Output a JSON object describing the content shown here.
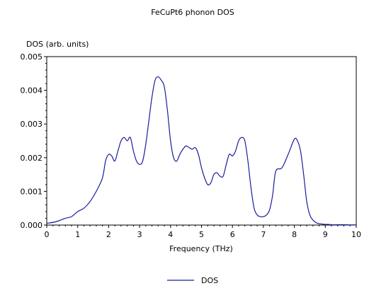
{
  "chart_data": {
    "type": "line",
    "title": "FeCuPt6 phonon DOS",
    "xlabel": "Frequency (THz)",
    "ylabel": "DOS (arb. units)",
    "xlim": [
      0,
      10
    ],
    "ylim": [
      0,
      0.005
    ],
    "x_ticks": [
      "0",
      "1",
      "2",
      "3",
      "4",
      "5",
      "6",
      "7",
      "8",
      "9",
      "10"
    ],
    "y_ticks": [
      "0.000",
      "0.001",
      "0.002",
      "0.003",
      "0.004",
      "0.005"
    ],
    "grid": false,
    "legend_position": "bottom-center",
    "series": [
      {
        "name": "DOS",
        "color": "#1c1c9e",
        "x": [
          0,
          0.3,
          0.6,
          0.8,
          1.0,
          1.2,
          1.4,
          1.6,
          1.8,
          1.9,
          2.0,
          2.1,
          2.2,
          2.3,
          2.4,
          2.5,
          2.6,
          2.7,
          2.8,
          2.9,
          3.0,
          3.1,
          3.2,
          3.3,
          3.4,
          3.5,
          3.6,
          3.7,
          3.8,
          3.9,
          4.0,
          4.1,
          4.2,
          4.3,
          4.4,
          4.5,
          4.6,
          4.7,
          4.8,
          4.9,
          5.0,
          5.1,
          5.2,
          5.3,
          5.4,
          5.5,
          5.6,
          5.7,
          5.8,
          5.9,
          6.0,
          6.1,
          6.2,
          6.3,
          6.4,
          6.5,
          6.6,
          6.7,
          6.8,
          6.9,
          7.0,
          7.1,
          7.2,
          7.3,
          7.4,
          7.6,
          7.8,
          8.0,
          8.1,
          8.2,
          8.3,
          8.4,
          8.5,
          8.6,
          8.7,
          8.8,
          8.9,
          9.0,
          9.1,
          9.2,
          9.4,
          9.6,
          9.8,
          10.0
        ],
        "y": [
          5e-05,
          0.0001,
          0.0002,
          0.00025,
          0.0004,
          0.0005,
          0.0007,
          0.001,
          0.0014,
          0.0019,
          0.0021,
          0.00205,
          0.0019,
          0.0022,
          0.0025,
          0.0026,
          0.0025,
          0.0026,
          0.0022,
          0.0019,
          0.0018,
          0.0019,
          0.0024,
          0.0031,
          0.0038,
          0.0043,
          0.0044,
          0.0043,
          0.0041,
          0.0034,
          0.0025,
          0.002,
          0.0019,
          0.0021,
          0.00225,
          0.00235,
          0.0023,
          0.00225,
          0.0023,
          0.0021,
          0.0017,
          0.0014,
          0.0012,
          0.00125,
          0.0015,
          0.00155,
          0.00145,
          0.00145,
          0.0018,
          0.0021,
          0.00205,
          0.0022,
          0.0025,
          0.0026,
          0.0025,
          0.0019,
          0.0011,
          0.0005,
          0.0003,
          0.00025,
          0.00025,
          0.0003,
          0.00045,
          0.0009,
          0.0016,
          0.0017,
          0.0021,
          0.00255,
          0.0025,
          0.0022,
          0.0015,
          0.0007,
          0.0003,
          0.00015,
          7e-05,
          4e-05,
          3e-05,
          2e-05,
          2e-05,
          1e-05,
          1e-05,
          1e-05,
          5e-06,
          5e-06
        ]
      }
    ]
  }
}
